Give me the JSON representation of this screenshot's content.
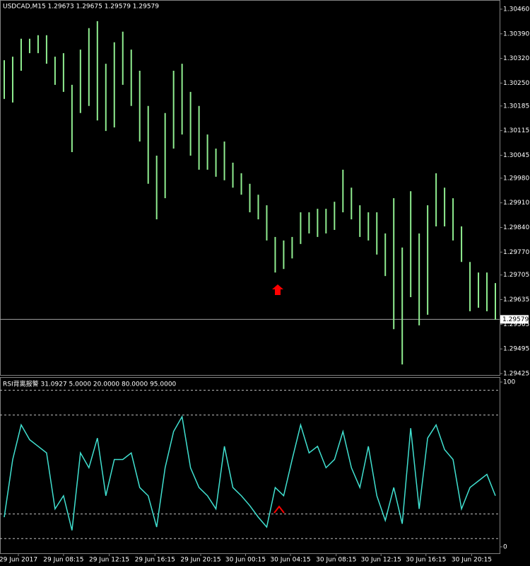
{
  "header": "USDCAD,M15  1.29673 1.29675 1.29579 1.29579",
  "chart_data": [
    {
      "type": "range",
      "color": "#90ee90",
      "xlim": [
        -0.5,
        58.5
      ],
      "xticks": [
        {
          "value": 1.67,
          "label": "29 Jun 2017"
        },
        {
          "value": 7,
          "label": "29 Jun 08:15"
        },
        {
          "value": 12.4,
          "label": "29 Jun 12:15"
        },
        {
          "value": 17.8,
          "label": "29 Jun 16:15"
        },
        {
          "value": 23.2,
          "label": "29 Jun 20:15"
        },
        {
          "value": 28.5,
          "label": "30 Jun 00:15"
        },
        {
          "value": 33.8,
          "label": "30 Jun 04:15"
        },
        {
          "value": 39.2,
          "label": "30 Jun 08:15"
        },
        {
          "value": 44.5,
          "label": "30 Jun 12:15"
        },
        {
          "value": 49.8,
          "label": "30 Jun 16:15"
        },
        {
          "value": 55.2,
          "label": "30 Jun 20:15"
        }
      ],
      "ylim": [
        1.29421,
        1.30486
      ],
      "yticks": [
        {
          "value": 1.3046,
          "label": "1.30460"
        },
        {
          "value": 1.3039,
          "label": "1.30390"
        },
        {
          "value": 1.3032,
          "label": "1.30320"
        },
        {
          "value": 1.3025,
          "label": "1.30250"
        },
        1.30185,
        1.30115,
        1.30045,
        {
          "value": 1.2998,
          "label": "1.29980"
        },
        {
          "value": 1.2991,
          "label": "1.29910"
        },
        {
          "value": 1.2984,
          "label": "1.29840"
        },
        {
          "value": 1.2977,
          "label": "1.29770"
        },
        1.29705,
        1.29635,
        1.29565,
        1.29495,
        1.29425
      ],
      "current_price": 1.29579,
      "high": [
        1.30315,
        1.30325,
        1.30376,
        1.30376,
        1.30386,
        1.30386,
        1.30325,
        1.30335,
        1.30245,
        1.30345,
        1.30406,
        1.30426,
        1.30305,
        1.30366,
        1.30396,
        1.30345,
        1.30285,
        1.30185,
        1.30044,
        1.30165,
        1.30285,
        1.30305,
        1.30225,
        1.30185,
        1.30104,
        1.30064,
        1.30084,
        1.30024,
        1.29994,
        1.29964,
        1.29933,
        1.29903,
        1.29813,
        1.29803,
        1.29813,
        1.29883,
        1.29883,
        1.29893,
        1.29893,
        1.29913,
        1.30004,
        1.29953,
        1.29903,
        1.29883,
        1.29883,
        1.29823,
        1.29923,
        1.29783,
        1.29943,
        1.29823,
        1.29903,
        1.29994,
        1.29953,
        1.29923,
        1.29843,
        1.29742,
        1.29712,
        1.29712,
        1.29682
      ],
      "low": [
        1.30205,
        1.30195,
        1.30285,
        1.30335,
        1.30335,
        1.30305,
        1.30245,
        1.30225,
        1.30054,
        1.30165,
        1.30185,
        1.30144,
        1.30114,
        1.30124,
        1.30245,
        1.30185,
        1.30084,
        1.29964,
        1.29863,
        1.29923,
        1.30064,
        1.30104,
        1.30044,
        1.30004,
        1.30004,
        1.29984,
        1.29974,
        1.29953,
        1.29933,
        1.29883,
        1.29863,
        1.29803,
        1.29712,
        1.29722,
        1.29752,
        1.29793,
        1.29823,
        1.29813,
        1.29823,
        1.29833,
        1.29883,
        1.29863,
        1.29813,
        1.29803,
        1.29763,
        1.29702,
        1.29551,
        1.29451,
        1.29642,
        1.29562,
        1.29592,
        1.29843,
        1.29843,
        1.29803,
        1.29742,
        1.29602,
        1.29612,
        1.29602,
        1.29578
      ]
    },
    {
      "type": "line",
      "title": "RSI背离报警 31.0927 5.0000 20.0000 80.0000 95.0000",
      "color": "#40e0d0",
      "xlim": [
        -0.5,
        58.5
      ],
      "ylim": [
        -3.9,
        103
      ],
      "yticks": [
        0,
        100
      ],
      "levels": [
        5,
        20,
        80,
        95
      ],
      "values": [
        18,
        53,
        74,
        65,
        61,
        57,
        23,
        31,
        10,
        57,
        48,
        66,
        31,
        53,
        53,
        57,
        36,
        31,
        12,
        48,
        70,
        79,
        48,
        36,
        31,
        23,
        61,
        36,
        31,
        25,
        18,
        12,
        36,
        31,
        53,
        74,
        57,
        61,
        48,
        53,
        70,
        48,
        36,
        61,
        31,
        16,
        36,
        14,
        72,
        23,
        66,
        74,
        59,
        53,
        23,
        36,
        40,
        44,
        31
      ]
    }
  ]
}
